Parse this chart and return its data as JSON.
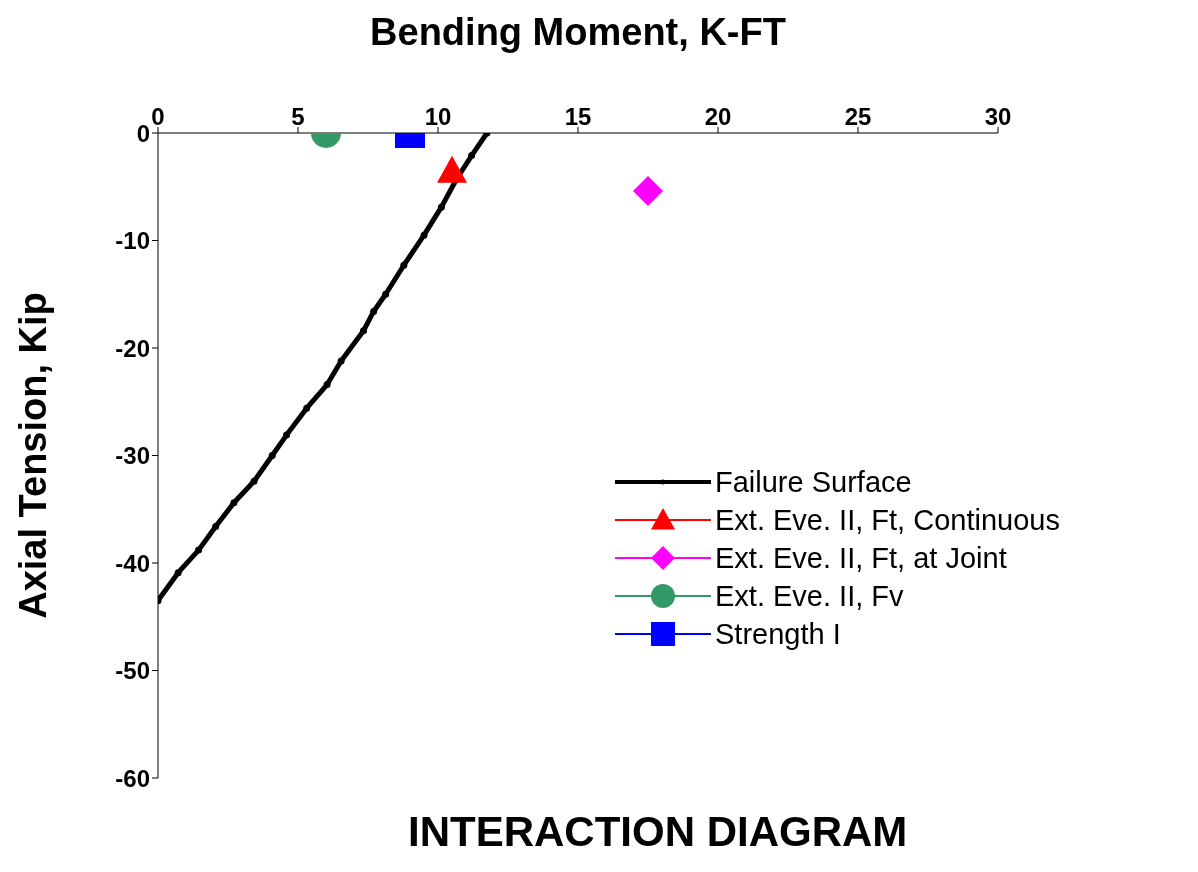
{
  "chart_data": {
    "type": "scatter",
    "title": "INTERACTION DIAGRAM",
    "xlabel": "Bending Moment, K-FT",
    "ylabel": "Axial Tension, Kip",
    "xlim": [
      0,
      30
    ],
    "xticks": [
      0,
      5,
      10,
      15,
      20,
      25,
      30
    ],
    "ylim": [
      -60,
      0
    ],
    "yticks": [
      0,
      -10,
      -20,
      -30,
      -40,
      -50,
      -60
    ],
    "grid": false,
    "legend": "right",
    "series": [
      {
        "name": "Failure Surface",
        "type": "line",
        "color": "#000000",
        "marker": "circle",
        "x": [
          0,
          0.72,
          1.45,
          2.06,
          2.71,
          3.43,
          4.08,
          4.59,
          5.31,
          6.04,
          6.54,
          7.34,
          7.7,
          8.13,
          8.78,
          9.5,
          10.12,
          10.66,
          11.2,
          11.75
        ],
        "values": [
          -43.5,
          -40.9,
          -38.8,
          -36.6,
          -34.4,
          -32.4,
          -30.0,
          -28.1,
          -25.6,
          -23.4,
          -21.2,
          -18.4,
          -16.6,
          -15.0,
          -12.3,
          -9.5,
          -6.9,
          -4.3,
          -2.1,
          0
        ]
      },
      {
        "name": "Ext. Eve. II, Ft, Continuous",
        "type": "scatter",
        "color": "#ff0000",
        "marker": "triangle",
        "x": [
          10.5
        ],
        "values": [
          -3.5
        ]
      },
      {
        "name": "Ext. Eve. II, Ft, at Joint",
        "type": "scatter",
        "color": "#ff00ff",
        "marker": "diamond",
        "x": [
          17.5
        ],
        "values": [
          -5.4
        ]
      },
      {
        "name": "Ext. Eve. II, Fv",
        "type": "scatter",
        "color": "#339966",
        "marker": "circle",
        "x": [
          6
        ],
        "values": [
          0
        ]
      },
      {
        "name": "Strength I",
        "type": "scatter",
        "color": "#0000ff",
        "marker": "square",
        "x": [
          9
        ],
        "values": [
          0
        ]
      }
    ]
  }
}
